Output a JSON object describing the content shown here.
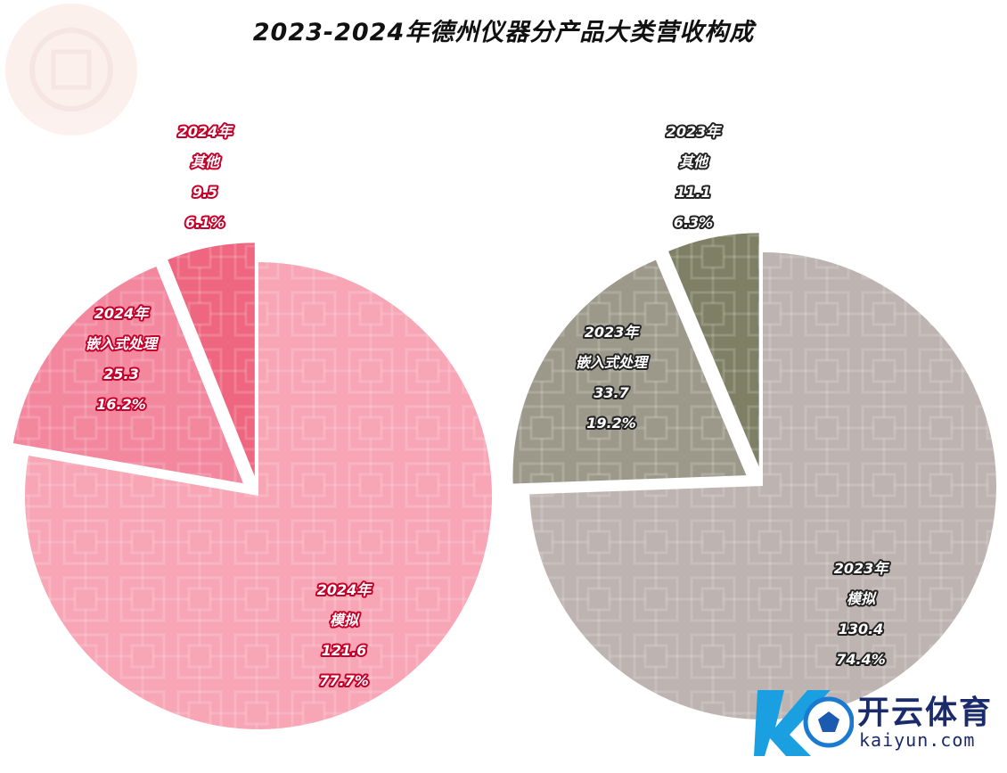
{
  "title": "2023-2024年德州仪器分产品大类营收构成",
  "chart_data": [
    {
      "type": "pie",
      "year_label": "2024年",
      "color": "#f4879e",
      "slices": [
        {
          "name": "模拟",
          "value": "121.6",
          "percent": "77.7%",
          "color": "#f8a6b6"
        },
        {
          "name": "嵌入式处理",
          "value": "25.3",
          "percent": "16.2%",
          "color": "#f2879e"
        },
        {
          "name": "其他",
          "value": "9.5",
          "percent": "6.1%",
          "color": "#ee6680"
        }
      ]
    },
    {
      "type": "pie",
      "year_label": "2023年",
      "color": "#9a9486",
      "slices": [
        {
          "name": "模拟",
          "value": "130.4",
          "percent": "74.4%",
          "color": "#bdb3b0"
        },
        {
          "name": "嵌入式处理",
          "value": "33.7",
          "percent": "19.2%",
          "color": "#9c988a"
        },
        {
          "name": "其他",
          "value": "11.1",
          "percent": "6.3%",
          "color": "#7e7f64"
        }
      ]
    }
  ],
  "logo": {
    "cn": "开云体育",
    "en": "kaiyun.com"
  }
}
